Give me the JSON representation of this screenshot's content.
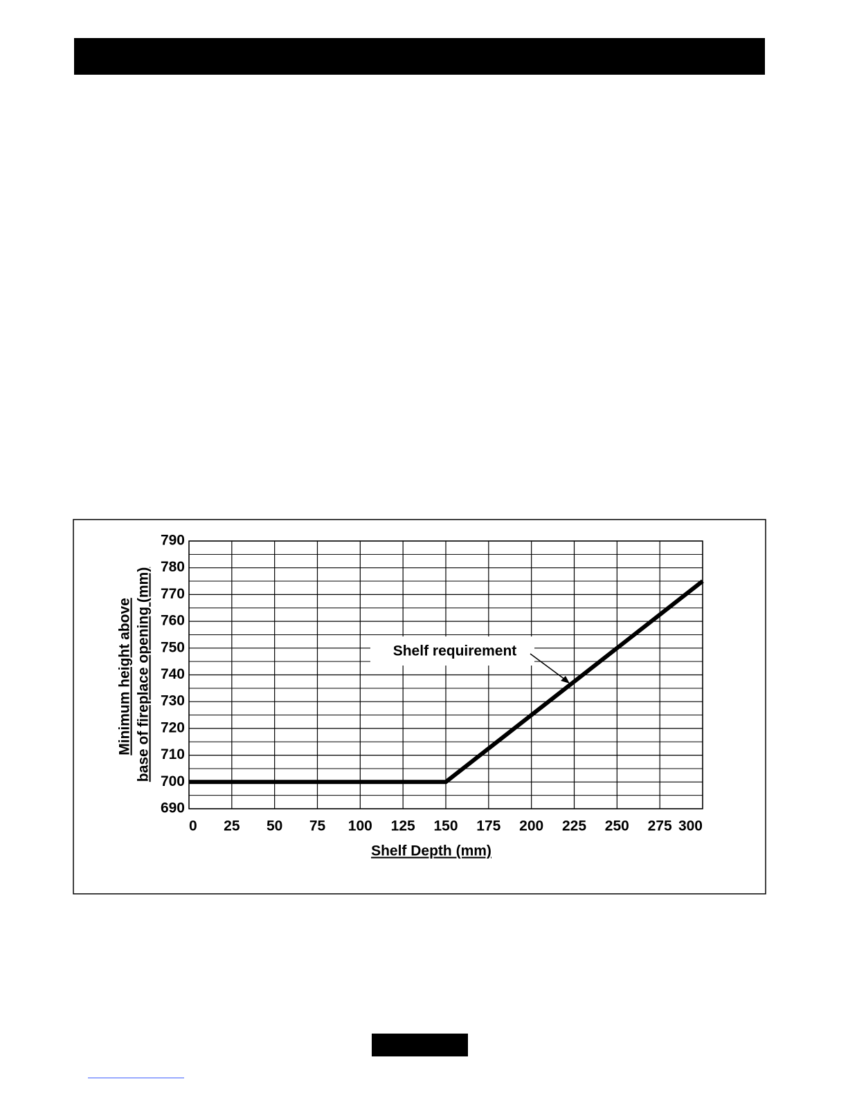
{
  "chart_data": {
    "type": "line",
    "xlabel": "Shelf Depth (mm)",
    "ylabel": [
      "Minimum height above",
      "base of fireplace opening (mm)"
    ],
    "annotation": "Shelf requirement",
    "x": [
      0,
      150,
      300
    ],
    "values": [
      700,
      700,
      775
    ],
    "color": "#000000",
    "xlim": [
      0,
      300
    ],
    "xticks": [
      0,
      25,
      50,
      75,
      100,
      125,
      150,
      175,
      200,
      225,
      250,
      275,
      300
    ],
    "ylim": [
      690,
      790
    ],
    "yticks": [
      690,
      700,
      710,
      720,
      730,
      740,
      750,
      760,
      770,
      780,
      790
    ],
    "yminorticks": [
      695,
      705,
      715,
      725,
      735,
      745,
      755,
      765,
      775,
      785
    ],
    "grid": true
  }
}
